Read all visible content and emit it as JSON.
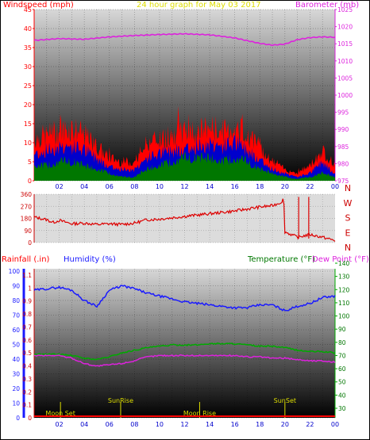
{
  "chart_data": [
    {
      "type": "area",
      "title": "24 hour graph for   May 03 2017",
      "left_axis_label": "Windspeed (mph)",
      "right_axis_label": "Barometer (mb)",
      "y_left_ticks": [
        "0",
        "5",
        "10",
        "15",
        "20",
        "25",
        "30",
        "35",
        "40",
        "45"
      ],
      "y_right_ticks": [
        "975",
        "980",
        "985",
        "990",
        "995",
        "1000",
        "1005",
        "1010",
        "1015",
        "1020",
        "1025"
      ],
      "x_ticks": [
        "02",
        "04",
        "06",
        "08",
        "10",
        "12",
        "14",
        "16",
        "18",
        "20",
        "22",
        "00"
      ],
      "ylim_left": [
        0,
        45
      ],
      "ylim_right": [
        975,
        1025
      ],
      "series": [
        {
          "name": "Windspeed (mph)",
          "kind": "gust",
          "color": "#ff0000",
          "x": [
            0,
            1,
            2,
            3,
            4,
            5,
            6,
            7,
            8,
            9,
            10,
            11,
            12,
            13,
            14,
            15,
            16,
            17,
            18,
            19,
            20,
            21,
            22,
            23,
            24
          ],
          "values": [
            11,
            12,
            13,
            14,
            12,
            9,
            6,
            5,
            5,
            10,
            11,
            12,
            13,
            13,
            14,
            13,
            14,
            12,
            9,
            5,
            3,
            2,
            4,
            8,
            4
          ]
        },
        {
          "kind": "average",
          "color": "#0000cc",
          "x": [
            0,
            1,
            2,
            3,
            4,
            5,
            6,
            7,
            8,
            9,
            10,
            11,
            12,
            13,
            14,
            15,
            16,
            17,
            18,
            19,
            20,
            21,
            22,
            23,
            24
          ],
          "values": [
            7,
            8,
            9,
            9,
            8,
            6,
            4,
            3,
            3,
            6,
            7,
            8,
            9,
            9,
            10,
            9,
            10,
            8,
            6,
            3,
            2,
            1,
            2,
            5,
            2
          ]
        },
        {
          "kind": "minimum",
          "color": "#007700",
          "x": [
            0,
            1,
            2,
            3,
            4,
            5,
            6,
            7,
            8,
            9,
            10,
            11,
            12,
            13,
            14,
            15,
            16,
            17,
            18,
            19,
            20,
            21,
            22,
            23,
            24
          ],
          "values": [
            4,
            4,
            5,
            5,
            4,
            3,
            2,
            1,
            1,
            3,
            4,
            5,
            6,
            6,
            6,
            5,
            6,
            5,
            3,
            2,
            1,
            0.5,
            1,
            2,
            1
          ]
        },
        {
          "name": "Barometer (mb)",
          "color": "#dd22dd",
          "axis": "right",
          "x": [
            0,
            2,
            4,
            6,
            8,
            10,
            12,
            14,
            16,
            17,
            18,
            19,
            20,
            21,
            22,
            23,
            24
          ],
          "values": [
            1016,
            1016.5,
            1016.3,
            1017,
            1017.4,
            1017.7,
            1017.9,
            1017.6,
            1016.7,
            1015.9,
            1015.1,
            1014.6,
            1014.9,
            1016.2,
            1016.8,
            1017,
            1016.9
          ]
        }
      ]
    },
    {
      "type": "line",
      "title": "",
      "y_ticks": [
        "0",
        "90",
        "180",
        "270",
        "360"
      ],
      "ylim": [
        0,
        360
      ],
      "direction_labels": [
        "N",
        "W",
        "S",
        "E",
        "N"
      ],
      "series": [
        {
          "name": "Wind direction",
          "color": "#dd0000",
          "x": [
            0,
            1,
            1.5,
            2,
            3,
            4,
            5,
            6,
            7,
            8,
            9,
            10,
            11,
            12,
            13,
            14,
            15,
            16,
            17,
            18,
            19,
            19.7,
            19.9,
            20,
            21,
            22,
            23,
            24
          ],
          "values": [
            190,
            170,
            150,
            165,
            140,
            145,
            135,
            140,
            135,
            145,
            170,
            175,
            185,
            195,
            205,
            215,
            225,
            235,
            250,
            265,
            275,
            300,
            330,
            80,
            40,
            60,
            40,
            15
          ]
        }
      ]
    },
    {
      "type": "line",
      "title": "",
      "left_axis_label": "Rainfall (.in)",
      "left_axis_label2": "Humidity (%)",
      "right_axis_label": "Temperature (°F)",
      "right_axis_label2": "Dew Point (°F)",
      "y_rain_ticks": [
        "0",
        "0.1",
        "0.2",
        "0.3",
        "0.4",
        "0.5",
        "0.6",
        "0.7",
        "0.8",
        "0.9",
        "1",
        "1.1"
      ],
      "y_humidity_ticks": [
        "0",
        "10",
        "20",
        "30",
        "40",
        "50",
        "60",
        "70",
        "80",
        "90",
        "100"
      ],
      "y_temp_ticks": [
        "30",
        "40",
        "50",
        "60",
        "70",
        "80",
        "90",
        "100",
        "110",
        "120",
        "130",
        "140"
      ],
      "ylim_humidity": [
        0,
        100
      ],
      "ylim_temp": [
        30,
        140
      ],
      "annotations": [
        "Moon Set",
        "SunRise",
        "Moon Rise",
        "SunSet"
      ],
      "series": [
        {
          "name": "Humidity (%)",
          "color": "#1a1aff",
          "x": [
            0,
            1,
            2,
            3,
            4,
            5,
            6,
            7,
            8,
            9,
            10,
            11,
            12,
            13,
            14,
            15,
            16,
            17,
            18,
            19,
            20,
            21,
            22,
            23,
            24
          ],
          "values": [
            87,
            88,
            89,
            87,
            80,
            76,
            87,
            90,
            88,
            85,
            83,
            81,
            79,
            78,
            77,
            76,
            75,
            75,
            77,
            77,
            73,
            76,
            78,
            82,
            83
          ]
        },
        {
          "name": "Temperature (°F)",
          "color": "#00aa00",
          "x": [
            0,
            2,
            3,
            4,
            5,
            6,
            7,
            8,
            9,
            10,
            11,
            12,
            13,
            14,
            15,
            16,
            17,
            18,
            19,
            20,
            21,
            22,
            23,
            24
          ],
          "values": [
            71,
            71,
            70,
            68,
            67,
            69,
            72,
            74,
            76,
            77,
            78,
            78,
            78,
            79,
            79,
            79,
            78,
            77,
            77,
            76,
            74,
            73,
            73,
            72
          ]
        },
        {
          "name": "Dew Point (°F)",
          "color": "#dd22dd",
          "x": [
            0,
            2,
            3,
            4,
            5,
            6,
            7,
            8,
            9,
            10,
            11,
            12,
            13,
            14,
            15,
            16,
            17,
            18,
            19,
            20,
            21,
            22,
            23,
            24
          ],
          "values": [
            70,
            70,
            68,
            64,
            62,
            63,
            64,
            66,
            69,
            70,
            70,
            70,
            70,
            70,
            70,
            70,
            69,
            69,
            68,
            68,
            67,
            66,
            66,
            65
          ]
        },
        {
          "name": "Rainfall (.in)",
          "color": "#ff0000",
          "x": [
            0,
            24
          ],
          "values": [
            0,
            0
          ]
        }
      ]
    }
  ]
}
